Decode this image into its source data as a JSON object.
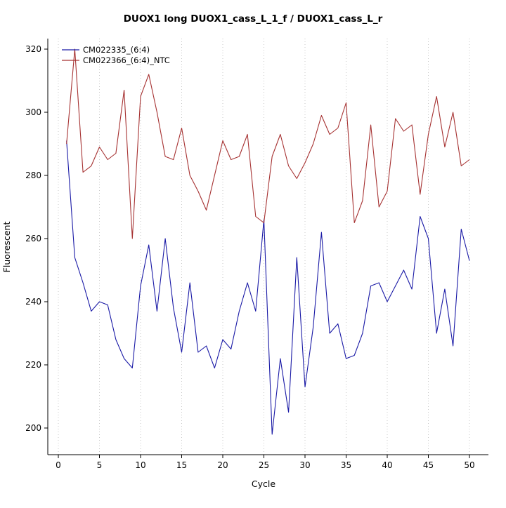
{
  "chart": {
    "title": "DUOX1 long DUOX1_cass_L_1_f / DUOX1_cass_L_r",
    "xlabel": "Cycle",
    "ylabel": "Fluorescent"
  },
  "chart_data": {
    "type": "line",
    "title": "DUOX1 long DUOX1_cass_L_1_f / DUOX1_cass_L_r",
    "xlabel": "Cycle",
    "ylabel": "Fluorescent",
    "xlim": [
      0,
      50
    ],
    "ylim": [
      195,
      322
    ],
    "xticks": [
      0,
      5,
      10,
      15,
      20,
      25,
      30,
      35,
      40,
      45,
      50
    ],
    "yticks": [
      200,
      220,
      240,
      260,
      280,
      300,
      320
    ],
    "grid": "vertical-dotted",
    "legend_position": "top-left",
    "x": [
      1,
      2,
      3,
      4,
      5,
      6,
      7,
      8,
      9,
      10,
      11,
      12,
      13,
      14,
      15,
      16,
      17,
      18,
      19,
      20,
      21,
      22,
      23,
      24,
      25,
      26,
      27,
      28,
      29,
      30,
      31,
      32,
      33,
      34,
      35,
      36,
      37,
      38,
      39,
      40,
      41,
      42,
      43,
      44,
      45,
      46,
      47,
      48,
      49,
      50
    ],
    "series": [
      {
        "name": "CM022335_(6:4)",
        "color": "#1a1aa6",
        "values": [
          291,
          254,
          246,
          237,
          240,
          239,
          228,
          222,
          219,
          245,
          258,
          237,
          260,
          238,
          224,
          246,
          224,
          226,
          219,
          228,
          225,
          237,
          246,
          237,
          266,
          198,
          222,
          205,
          254,
          213,
          232,
          262,
          230,
          233,
          222,
          223,
          230,
          245,
          246,
          240,
          245,
          250,
          244,
          267,
          260,
          230,
          244,
          226,
          263,
          253
        ]
      },
      {
        "name": "CM022366_(6:4)_NTC",
        "color": "#a63232",
        "values": [
          290,
          320,
          281,
          283,
          289,
          285,
          287,
          307,
          260,
          305,
          312,
          300,
          286,
          285,
          295,
          280,
          275,
          269,
          280,
          291,
          285,
          286,
          293,
          267,
          265,
          286,
          293,
          283,
          279,
          284,
          290,
          299,
          293,
          295,
          303,
          265,
          272,
          296,
          270,
          275,
          298,
          294,
          296,
          274,
          293,
          305,
          289,
          300,
          283,
          285
        ]
      }
    ]
  }
}
